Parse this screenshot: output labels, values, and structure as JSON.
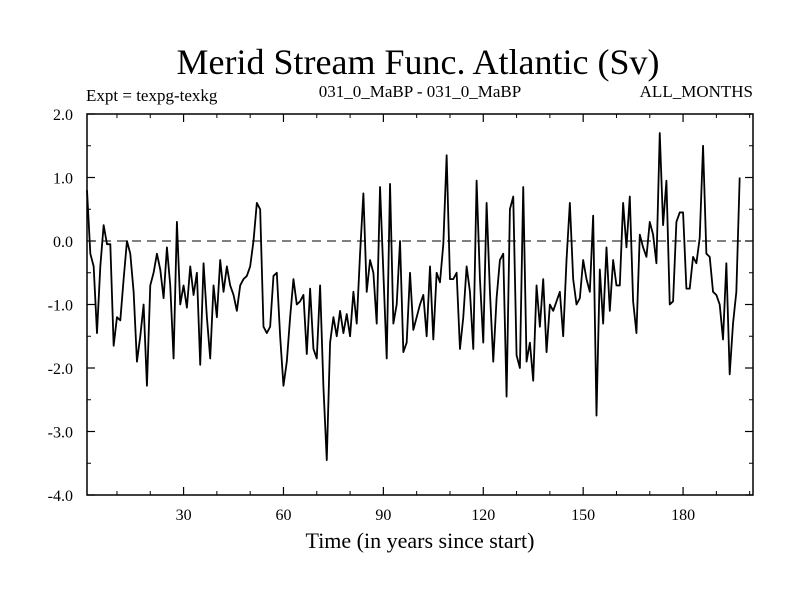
{
  "chart_data": {
    "type": "line",
    "title": "Merid Stream Func. Atlantic (Sv)",
    "subtitle_left": "Expt = texpg-texkg",
    "subtitle_center": "031_0_MaBP - 031_0_MaBP",
    "subtitle_right": "ALL_MONTHS",
    "xlabel": "Time (in years since start)",
    "ylabel": "",
    "xlim": [
      1,
      201
    ],
    "ylim": [
      -4.0,
      2.0
    ],
    "x_ticks": [
      30,
      60,
      90,
      120,
      150,
      180
    ],
    "x_tick_labels": [
      "30",
      "60",
      "90",
      "120",
      "150",
      "180"
    ],
    "y_ticks": [
      2.0,
      1.0,
      0.0,
      -1.0,
      -2.0,
      -3.0,
      -4.0
    ],
    "y_tick_labels": [
      "2.0",
      "1.0",
      "0.0",
      "-1.0",
      "-2.0",
      "-3.0",
      "-4.0"
    ],
    "reference_line": 0.0,
    "grid": false,
    "series": [
      {
        "name": "Merid Stream Func. Atlantic",
        "x_start": 1,
        "x_step": 1,
        "values": [
          0.8,
          -0.2,
          -0.4,
          -1.45,
          -0.4,
          0.25,
          -0.05,
          -0.05,
          -1.65,
          -1.2,
          -1.25,
          -0.6,
          0.0,
          -0.2,
          -0.8,
          -1.9,
          -1.5,
          -1.0,
          -2.28,
          -0.7,
          -0.5,
          -0.2,
          -0.45,
          -0.9,
          -0.1,
          -0.7,
          -1.85,
          0.3,
          -1.0,
          -0.7,
          -1.05,
          -0.4,
          -0.85,
          -0.5,
          -1.95,
          -0.35,
          -1.2,
          -1.85,
          -0.7,
          -1.2,
          -0.3,
          -0.8,
          -0.4,
          -0.7,
          -0.85,
          -1.1,
          -0.7,
          -0.6,
          -0.55,
          -0.4,
          0.0,
          0.6,
          0.5,
          -1.35,
          -1.45,
          -1.35,
          -0.55,
          -0.5,
          -1.5,
          -2.28,
          -1.9,
          -1.2,
          -0.6,
          -1.0,
          -0.95,
          -0.85,
          -1.78,
          -0.75,
          -1.7,
          -1.85,
          -0.7,
          -2.3,
          -3.45,
          -1.6,
          -1.2,
          -1.5,
          -1.1,
          -1.45,
          -1.15,
          -1.5,
          -0.8,
          -1.3,
          -0.2,
          0.75,
          -0.8,
          -0.3,
          -0.5,
          -1.3,
          0.85,
          -0.5,
          -1.85,
          0.9,
          -1.3,
          -1.0,
          0.0,
          -1.75,
          -1.6,
          -0.5,
          -1.4,
          -1.2,
          -1.0,
          -0.85,
          -1.5,
          -0.4,
          -1.55,
          -0.5,
          -0.65,
          -0.05,
          1.35,
          -0.6,
          -0.6,
          -0.5,
          -1.7,
          -1.2,
          -0.4,
          -0.8,
          -1.7,
          0.95,
          -0.6,
          -1.6,
          0.6,
          -0.8,
          -1.9,
          -0.9,
          -0.3,
          -0.2,
          -2.45,
          0.5,
          0.7,
          -1.8,
          -2.0,
          0.85,
          -1.9,
          -1.6,
          -2.2,
          -0.7,
          -1.35,
          -0.6,
          -1.75,
          -1.0,
          -1.1,
          -0.95,
          -0.8,
          -1.5,
          -0.3,
          0.6,
          -0.6,
          -1.0,
          -0.9,
          -0.3,
          -0.6,
          -0.8,
          0.4,
          -2.75,
          -0.45,
          -1.3,
          -0.1,
          -1.1,
          -0.3,
          -0.7,
          -0.7,
          0.6,
          -0.1,
          0.7,
          -0.95,
          -1.45,
          0.1,
          -0.1,
          -0.25,
          0.3,
          0.1,
          -0.35,
          1.7,
          0.25,
          0.95,
          -1.0,
          -0.95,
          0.3,
          0.45,
          0.45,
          -0.75,
          -0.75,
          -0.25,
          -0.35,
          0.05,
          1.5,
          -0.2,
          -0.25,
          -0.8,
          -0.85,
          -1.0,
          -1.55,
          -0.35,
          -2.1,
          -1.3,
          -0.8,
          1.0
        ]
      }
    ]
  }
}
